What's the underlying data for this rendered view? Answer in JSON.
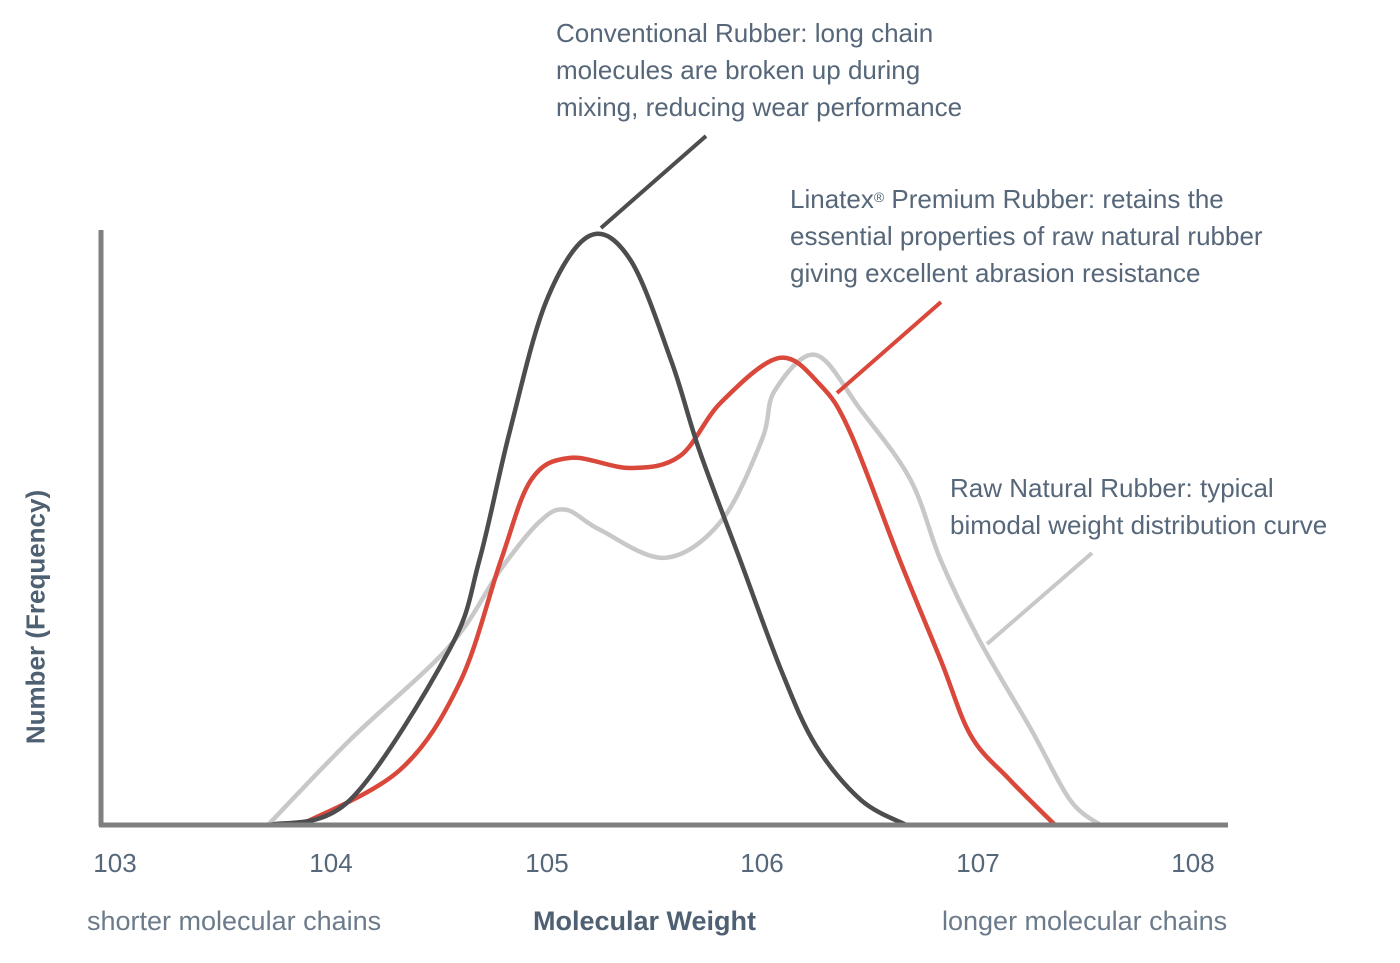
{
  "chart_data": {
    "type": "line",
    "title": "",
    "xlabel": "Molecular Weight",
    "ylabel": "Number (Frequency)",
    "xlim": [
      3,
      8
    ],
    "ylim": [
      0,
      100
    ],
    "x_ticks": [
      "103",
      "104",
      "105",
      "106",
      "107",
      "108"
    ],
    "x_tick_values": [
      3,
      4,
      5,
      6,
      7,
      8
    ],
    "x_left_note": "shorter molecular chains",
    "x_right_note": "longer molecular chains",
    "grid": false,
    "series": [
      {
        "name": "Raw Natural Rubber",
        "color": "#c8c8c8",
        "x": [
          3.71,
          4.09,
          4.55,
          4.79,
          4.97,
          5.09,
          5.25,
          5.55,
          5.81,
          6.0,
          6.06,
          6.25,
          6.46,
          6.69,
          6.83,
          7.01,
          7.25,
          7.43,
          7.57
        ],
        "y": [
          0,
          14.3,
          30,
          43,
          51,
          53,
          49.6,
          44.9,
          51,
          64.7,
          73,
          79,
          69.7,
          58,
          44.5,
          31,
          16,
          4.2,
          0
        ]
      },
      {
        "name": "Linatex Premium Rubber",
        "color": "#d9483b",
        "x": [
          3.86,
          4.32,
          4.6,
          4.79,
          4.93,
          5.11,
          5.39,
          5.62,
          5.81,
          6.08,
          6.27,
          6.41,
          6.64,
          6.83,
          6.97,
          7.15,
          7.36
        ],
        "y": [
          0,
          9.2,
          24,
          44.5,
          58,
          61.7,
          60,
          62,
          71,
          78.5,
          74,
          66,
          44.5,
          27.7,
          15,
          7.6,
          0
        ]
      },
      {
        "name": "Conventional Rubber",
        "color": "#4d4d4f",
        "x": [
          3.72,
          4.09,
          4.55,
          4.69,
          4.83,
          5.0,
          5.2,
          5.39,
          5.58,
          5.71,
          5.9,
          6.09,
          6.25,
          6.46,
          6.67
        ],
        "y": [
          0,
          4.2,
          29.4,
          44.5,
          66,
          88,
          99,
          95,
          78,
          63,
          44.5,
          26,
          13.4,
          4.2,
          0
        ]
      }
    ],
    "annotations": {
      "conventional": [
        "Conventional Rubber: long chain",
        "molecules are broken up during",
        "mixing, reducing wear performance"
      ],
      "linatex_name": "Linatex",
      "linatex_reg": "®",
      "linatex": [
        " Premium Rubber: retains the",
        "essential properties of raw natural rubber",
        "giving excellent abrasion resistance"
      ],
      "raw": [
        "Raw Natural Rubber: typical",
        "bimodal weight distribution curve"
      ]
    }
  }
}
